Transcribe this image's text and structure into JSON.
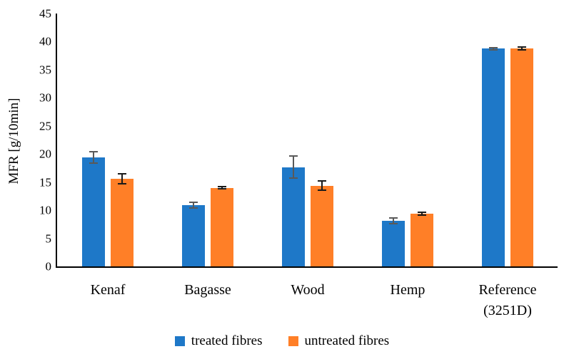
{
  "chart_data": {
    "type": "bar",
    "title": "",
    "xlabel": "",
    "ylabel": "MFR [g/10min]",
    "ylim": [
      0,
      45
    ],
    "yticks": [
      0,
      5,
      10,
      15,
      20,
      25,
      30,
      35,
      40,
      45
    ],
    "grid": false,
    "legend_position": "bottom",
    "categories": [
      "Kenaf",
      "Bagasse",
      "Wood",
      "Hemp",
      "Reference (3251D)"
    ],
    "category_display": [
      [
        "Kenaf"
      ],
      [
        "Bagasse"
      ],
      [
        "Wood"
      ],
      [
        "Hemp"
      ],
      [
        "Reference",
        "(3251D)"
      ]
    ],
    "series": [
      {
        "name": "treated fibres",
        "color": "#1E78C8",
        "error_color": "#595959",
        "values": [
          19.5,
          11.0,
          17.8,
          8.2,
          38.9
        ],
        "errors": [
          1.0,
          0.5,
          2.0,
          0.5,
          0.2
        ]
      },
      {
        "name": "untreated fibres",
        "color": "#FF7F27",
        "error_color": "#1a1a1a",
        "values": [
          15.7,
          14.1,
          14.5,
          9.5,
          38.9
        ],
        "errors": [
          0.9,
          0.2,
          0.8,
          0.3,
          0.3
        ]
      }
    ],
    "axis_color": "#000000"
  }
}
